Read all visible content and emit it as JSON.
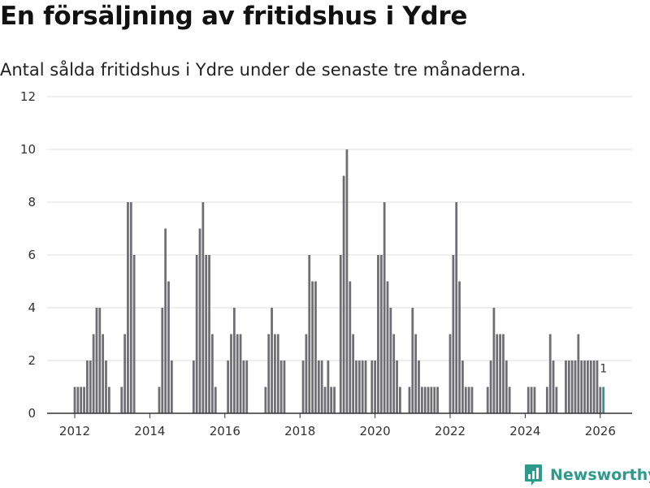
{
  "header": {
    "title": "En försäljning av fritidshus i Ydre",
    "subtitle": "Antal sålda fritidshus i Ydre under de senaste tre månaderna."
  },
  "brand": {
    "name": "Newsworthy",
    "icon": "newsworthy-logo-icon",
    "color": "#2e9a8a"
  },
  "chart_data": {
    "type": "bar",
    "title": "En försäljning av fritidshus i Ydre",
    "subtitle": "Antal sålda fritidshus i Ydre under de senaste tre månaderna.",
    "xlabel": "",
    "ylabel": "",
    "ylim": [
      0,
      12
    ],
    "yticks": [
      0,
      2,
      4,
      6,
      8,
      10,
      12
    ],
    "xticks": [
      2012,
      2014,
      2016,
      2018,
      2020,
      2022,
      2024,
      2026
    ],
    "xticks_text": [
      "2012",
      "2014",
      "2016",
      "2018",
      "2020",
      "2022",
      "2024",
      "2026"
    ],
    "grid": true,
    "legend": "none",
    "bar_color": "#6f6e72",
    "highlight_color": "#2e9a8a",
    "start_month": "2012-01",
    "values": [
      1,
      1,
      1,
      1,
      2,
      2,
      3,
      4,
      4,
      3,
      2,
      1,
      0,
      0,
      0,
      1,
      3,
      8,
      8,
      6,
      0,
      0,
      0,
      0,
      0,
      0,
      0,
      1,
      4,
      7,
      5,
      2,
      0,
      0,
      0,
      0,
      0,
      0,
      2,
      6,
      7,
      8,
      6,
      6,
      3,
      1,
      0,
      0,
      0,
      2,
      3,
      4,
      3,
      3,
      2,
      2,
      0,
      0,
      0,
      0,
      0,
      1,
      3,
      4,
      3,
      3,
      2,
      2,
      0,
      0,
      0,
      0,
      0,
      2,
      3,
      6,
      5,
      5,
      2,
      2,
      1,
      2,
      1,
      1,
      0,
      6,
      9,
      10,
      5,
      3,
      2,
      2,
      2,
      2,
      0,
      2,
      2,
      6,
      6,
      8,
      5,
      4,
      3,
      2,
      1,
      0,
      0,
      1,
      4,
      3,
      2,
      1,
      1,
      1,
      1,
      1,
      1,
      0,
      0,
      0,
      3,
      6,
      8,
      5,
      2,
      1,
      1,
      1,
      0,
      0,
      0,
      0,
      1,
      2,
      4,
      3,
      3,
      3,
      2,
      1,
      0,
      0,
      0,
      0,
      0,
      1,
      1,
      1,
      0,
      0,
      0,
      1,
      3,
      2,
      1,
      0,
      0,
      2,
      2,
      2,
      2,
      3,
      2,
      2,
      2,
      2,
      2,
      2,
      1,
      1
    ],
    "last_value": 1,
    "last_value_text": "1"
  }
}
